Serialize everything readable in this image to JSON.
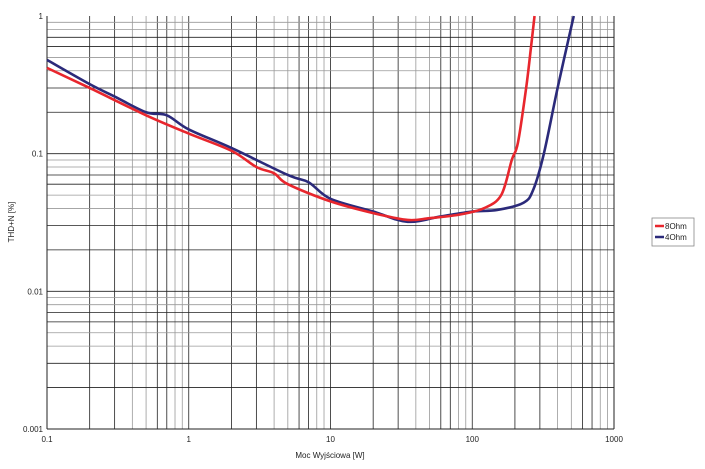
{
  "chart_data": {
    "type": "line",
    "title": "",
    "xlabel": "Moc Wyjściowa [W]",
    "ylabel": "THD+N [%]",
    "xscale": "log",
    "yscale": "log",
    "xlim": [
      0.1,
      1000
    ],
    "ylim": [
      0.001,
      1
    ],
    "grid": true,
    "legend_position": "right",
    "x_tick_labels": [
      "0.1",
      "1",
      "10",
      "100",
      "1000"
    ],
    "y_tick_labels": [
      "0.001",
      "0.01",
      "0.1",
      "1"
    ],
    "series": [
      {
        "name": "8Ohm",
        "color": "#e8262d",
        "x": [
          0.1,
          0.2,
          0.5,
          1,
          2,
          3,
          4,
          5,
          10,
          20,
          35,
          50,
          80,
          120,
          160,
          190,
          210,
          240,
          260,
          275
        ],
        "y": [
          0.42,
          0.3,
          0.19,
          0.14,
          0.105,
          0.08,
          0.072,
          0.06,
          0.045,
          0.037,
          0.033,
          0.034,
          0.036,
          0.04,
          0.05,
          0.09,
          0.12,
          0.3,
          0.6,
          1.0
        ]
      },
      {
        "name": "4Ohm",
        "color": "#2b2a7a",
        "x": [
          0.1,
          0.2,
          0.3,
          0.5,
          0.7,
          1,
          2,
          5,
          7,
          10,
          20,
          35,
          60,
          100,
          150,
          230,
          270,
          320,
          400,
          520
        ],
        "y": [
          0.48,
          0.32,
          0.26,
          0.2,
          0.19,
          0.15,
          0.11,
          0.07,
          0.062,
          0.047,
          0.038,
          0.032,
          0.035,
          0.038,
          0.039,
          0.044,
          0.055,
          0.1,
          0.3,
          1.0
        ]
      }
    ]
  }
}
